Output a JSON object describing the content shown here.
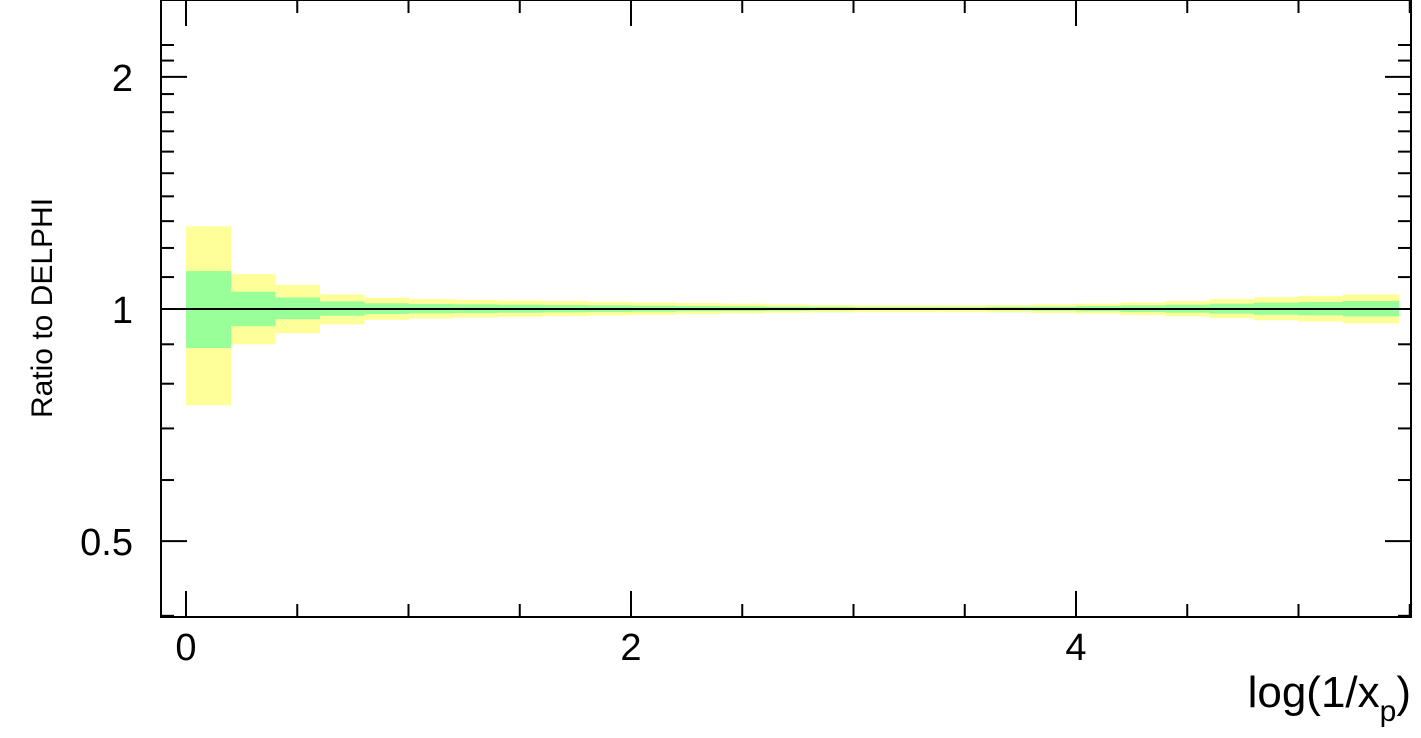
{
  "chart_data": {
    "type": "area",
    "title": "",
    "xlabel_main": "log(1/x",
    "xlabel_sub": "p",
    "xlabel_close": ")",
    "ylabel": "Ratio to DELPHI",
    "xlim": [
      -0.1,
      5.6
    ],
    "ylim": [
      0.35,
      2.3
    ],
    "y_scale": "log",
    "grid": false,
    "x_ticks": [
      0,
      2,
      4
    ],
    "x_tick_labels": [
      "0",
      "2",
      "4"
    ],
    "x_minor_step": 0.5,
    "y_ticks": [
      0.5,
      1,
      2
    ],
    "y_tick_labels": [
      "0.5",
      "1",
      "2"
    ],
    "y_minor_ticks": [
      0.4,
      0.6,
      0.7,
      0.8,
      0.9,
      1.1,
      1.2,
      1.3,
      1.4,
      1.5,
      1.6,
      1.7,
      1.8,
      1.9,
      2.1,
      2.2
    ],
    "reference_line": 1,
    "bin_edges": [
      0,
      0.2,
      0.4,
      0.6,
      0.8,
      1.0,
      1.2,
      1.4,
      1.6,
      1.8,
      2.0,
      2.2,
      2.4,
      2.6,
      2.8,
      3.0,
      3.2,
      3.4,
      3.6,
      3.8,
      4.0,
      4.2,
      4.4,
      4.6,
      4.8,
      5.0,
      5.2,
      5.45
    ],
    "series": [
      {
        "color": "#ffff99",
        "lower": [
          0.75,
          0.9,
          0.93,
          0.955,
          0.968,
          0.972,
          0.975,
          0.977,
          0.979,
          0.981,
          0.983,
          0.985,
          0.987,
          0.989,
          0.99,
          0.991,
          0.991,
          0.991,
          0.99,
          0.988,
          0.986,
          0.982,
          0.978,
          0.973,
          0.967,
          0.963,
          0.958
        ],
        "upper": [
          1.28,
          1.11,
          1.075,
          1.045,
          1.034,
          1.03,
          1.028,
          1.026,
          1.024,
          1.022,
          1.02,
          1.018,
          1.016,
          1.014,
          1.012,
          1.011,
          1.011,
          1.011,
          1.012,
          1.014,
          1.016,
          1.02,
          1.024,
          1.03,
          1.036,
          1.04,
          1.045
        ]
      },
      {
        "color": "#99ff99",
        "lower": [
          0.89,
          0.95,
          0.97,
          0.98,
          0.985,
          0.987,
          0.988,
          0.989,
          0.99,
          0.991,
          0.992,
          0.993,
          0.994,
          0.995,
          0.996,
          0.997,
          0.997,
          0.997,
          0.996,
          0.995,
          0.993,
          0.991,
          0.989,
          0.986,
          0.983,
          0.981,
          0.978
        ],
        "upper": [
          1.12,
          1.053,
          1.035,
          1.023,
          1.017,
          1.015,
          1.014,
          1.013,
          1.012,
          1.011,
          1.01,
          1.009,
          1.008,
          1.007,
          1.006,
          1.005,
          1.005,
          1.005,
          1.006,
          1.007,
          1.009,
          1.011,
          1.013,
          1.016,
          1.019,
          1.021,
          1.024
        ]
      }
    ]
  }
}
